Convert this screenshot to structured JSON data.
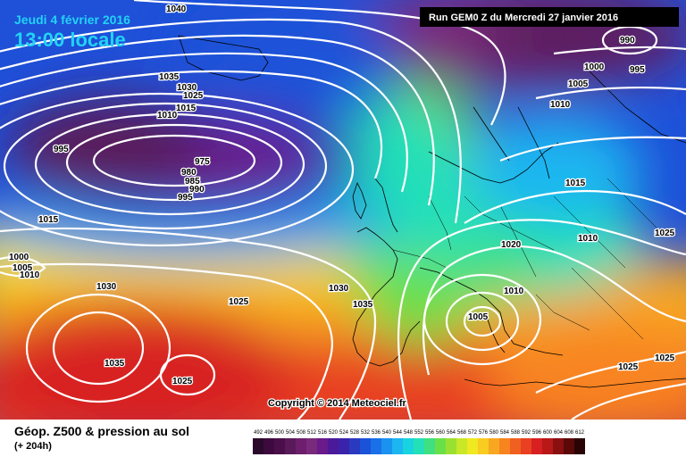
{
  "header": {
    "date": "Jeudi 4 février 2016",
    "time": "13:00 locale",
    "run": "Run GEM0 Z du Mercredi 27 janvier 2016"
  },
  "map": {
    "copyright": "Copyright © 2014 Meteociel.fr",
    "isobar_labels": [
      "1040",
      "1035",
      "1030",
      "1025",
      "1020",
      "1015",
      "1010",
      "1005",
      "1000",
      "995",
      "990",
      "985",
      "980",
      "975"
    ]
  },
  "footer": {
    "title": "Géop. Z500 & pression au sol",
    "subtitle": "(+ 204h)"
  },
  "legend": {
    "ticks": [
      "492",
      "496",
      "500",
      "504",
      "508",
      "512",
      "516",
      "520",
      "524",
      "528",
      "532",
      "536",
      "540",
      "544",
      "548",
      "552",
      "556",
      "560",
      "564",
      "568",
      "572",
      "576",
      "580",
      "584",
      "588",
      "592",
      "596",
      "600",
      "604",
      "608",
      "612"
    ],
    "colors": [
      "#2a0a2a",
      "#3d0a3d",
      "#4a0f4a",
      "#5a1a5a",
      "#6d1f6d",
      "#7a2a7a",
      "#6a1a8a",
      "#4a1a9a",
      "#3a22aa",
      "#2a3ac0",
      "#1a52d8",
      "#1a70e8",
      "#1a92f0",
      "#1cb6f0",
      "#18d4e0",
      "#24e0b8",
      "#40e080",
      "#6ae048",
      "#9ae030",
      "#c8e828",
      "#f0e820",
      "#f8cc20",
      "#f8a820",
      "#f88420",
      "#f06020",
      "#e84020",
      "#d82020",
      "#b81818",
      "#8a1010",
      "#5a0808",
      "#2a0404"
    ]
  }
}
